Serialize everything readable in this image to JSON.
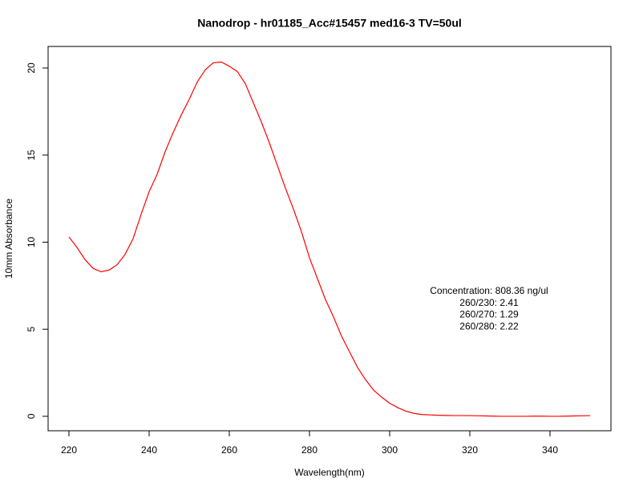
{
  "chart_data": {
    "type": "line",
    "title": "Nanodrop - hr01185_Acc#15457 med16-3  TV=50ul",
    "x_label": "Wavelength(nm)",
    "y_label": "10mm Absorbance",
    "annotations": [
      "Concentration: 808.36 ng/ul",
      "260/230: 2.41",
      "260/270: 1.29",
      "260/280: 2.22"
    ],
    "x": [
      220,
      222,
      224,
      226,
      228,
      230,
      232,
      234,
      236,
      238,
      240,
      242,
      244,
      246,
      248,
      250,
      252,
      254,
      256,
      258,
      260,
      262,
      264,
      266,
      268,
      270,
      272,
      274,
      276,
      278,
      280,
      282,
      284,
      286,
      288,
      290,
      292,
      294,
      296,
      298,
      300,
      302,
      304,
      306,
      308,
      310,
      312,
      314,
      316,
      318,
      320,
      322,
      324,
      326,
      328,
      330,
      332,
      334,
      336,
      338,
      340,
      342,
      344,
      346,
      348,
      350
    ],
    "series": [
      {
        "color": "#ff0000",
        "values": [
          10.3,
          9.7,
          9.0,
          8.5,
          8.3,
          8.4,
          8.7,
          9.3,
          10.2,
          11.6,
          12.9,
          13.9,
          15.2,
          16.3,
          17.3,
          18.2,
          19.2,
          19.9,
          20.3,
          20.35,
          20.1,
          19.8,
          19.1,
          18.0,
          16.9,
          15.7,
          14.4,
          13.1,
          11.9,
          10.6,
          9.1,
          7.9,
          6.7,
          5.7,
          4.6,
          3.7,
          2.8,
          2.1,
          1.5,
          1.1,
          0.75,
          0.5,
          0.3,
          0.17,
          0.1,
          0.08,
          0.06,
          0.05,
          0.04,
          0.04,
          0.04,
          0.03,
          0.02,
          0.01,
          0,
          0,
          0,
          0,
          0.01,
          0.01,
          0,
          0,
          0.01,
          0.02,
          0.03,
          0.04
        ]
      }
    ],
    "xlim": [
      214.8,
      355.2
    ],
    "ylim": [
      -0.83,
      21.24
    ],
    "xticks": [
      220,
      240,
      260,
      280,
      300,
      320,
      340
    ],
    "yticks": [
      0,
      5,
      10,
      15,
      20
    ]
  }
}
